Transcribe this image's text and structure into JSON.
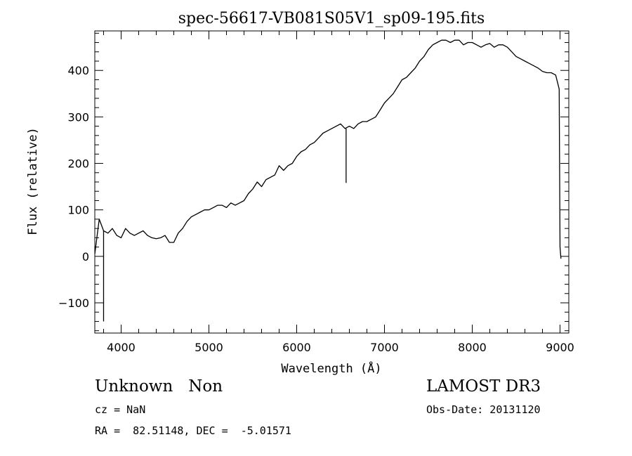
{
  "chart_data": {
    "type": "line",
    "title": "spec-56617-VB081S05V1_sp09-195.fits",
    "xlabel": "Wavelength (Å)",
    "ylabel": "Flux (relative)",
    "xlim": [
      3700,
      9100
    ],
    "ylim": [
      -165,
      485
    ],
    "x_ticks": [
      4000,
      5000,
      6000,
      7000,
      8000,
      9000
    ],
    "y_ticks": [
      -100,
      0,
      100,
      200,
      300,
      400
    ],
    "grid": false,
    "legend": "none",
    "line_color": "#000000",
    "series": [
      {
        "x": [
          3700,
          3750,
          3800,
          3850,
          3900,
          3950,
          4000,
          4050,
          4100,
          4150,
          4200,
          4250,
          4300,
          4350,
          4400,
          4450,
          4500,
          4550,
          4600,
          4650,
          4700,
          4750,
          4800,
          4850,
          4900,
          4950,
          5000,
          5050,
          5100,
          5150,
          5200,
          5250,
          5300,
          5350,
          5400,
          5450,
          5500,
          5550,
          5600,
          5650,
          5700,
          5750,
          5800,
          5850,
          5900,
          5950,
          6000,
          6050,
          6100,
          6150,
          6200,
          6250,
          6300,
          6350,
          6400,
          6450,
          6500,
          6550,
          6600,
          6650,
          6700,
          6750,
          6800,
          6850,
          6900,
          6950,
          7000,
          7050,
          7100,
          7150,
          7200,
          7250,
          7300,
          7350,
          7400,
          7450,
          7500,
          7550,
          7600,
          7650,
          7700,
          7750,
          7800,
          7850,
          7900,
          7950,
          8000,
          8050,
          8100,
          8150,
          8200,
          8250,
          8300,
          8350,
          8400,
          8450,
          8500,
          8550,
          8600,
          8650,
          8700,
          8750,
          8800,
          8850,
          8900,
          8950,
          8990,
          9000,
          9010
        ],
        "y": [
          5,
          80,
          55,
          50,
          60,
          45,
          40,
          60,
          50,
          45,
          50,
          55,
          45,
          40,
          38,
          40,
          45,
          30,
          30,
          50,
          60,
          75,
          85,
          90,
          95,
          100,
          100,
          105,
          110,
          110,
          105,
          115,
          110,
          115,
          120,
          135,
          145,
          160,
          150,
          165,
          170,
          175,
          195,
          185,
          195,
          200,
          215,
          225,
          230,
          240,
          245,
          255,
          265,
          270,
          275,
          280,
          285,
          275,
          280,
          275,
          285,
          290,
          290,
          295,
          300,
          315,
          330,
          340,
          350,
          365,
          380,
          385,
          395,
          405,
          420,
          430,
          445,
          455,
          460,
          465,
          465,
          460,
          465,
          465,
          455,
          460,
          460,
          455,
          450,
          455,
          458,
          450,
          455,
          455,
          450,
          440,
          430,
          425,
          420,
          415,
          410,
          405,
          398,
          395,
          395,
          390,
          360,
          20,
          -5
        ]
      }
    ],
    "features": [
      {
        "x": 3800,
        "y": -140
      },
      {
        "x": 6563,
        "y": 158
      }
    ]
  },
  "footer": {
    "class_text": "Unknown   Non",
    "survey_text": "LAMOST DR3",
    "cz_text": "cz = NaN",
    "obs_date_text": "Obs-Date: 20131120",
    "radec_text": "RA =  82.51148, DEC =  -5.01571"
  }
}
